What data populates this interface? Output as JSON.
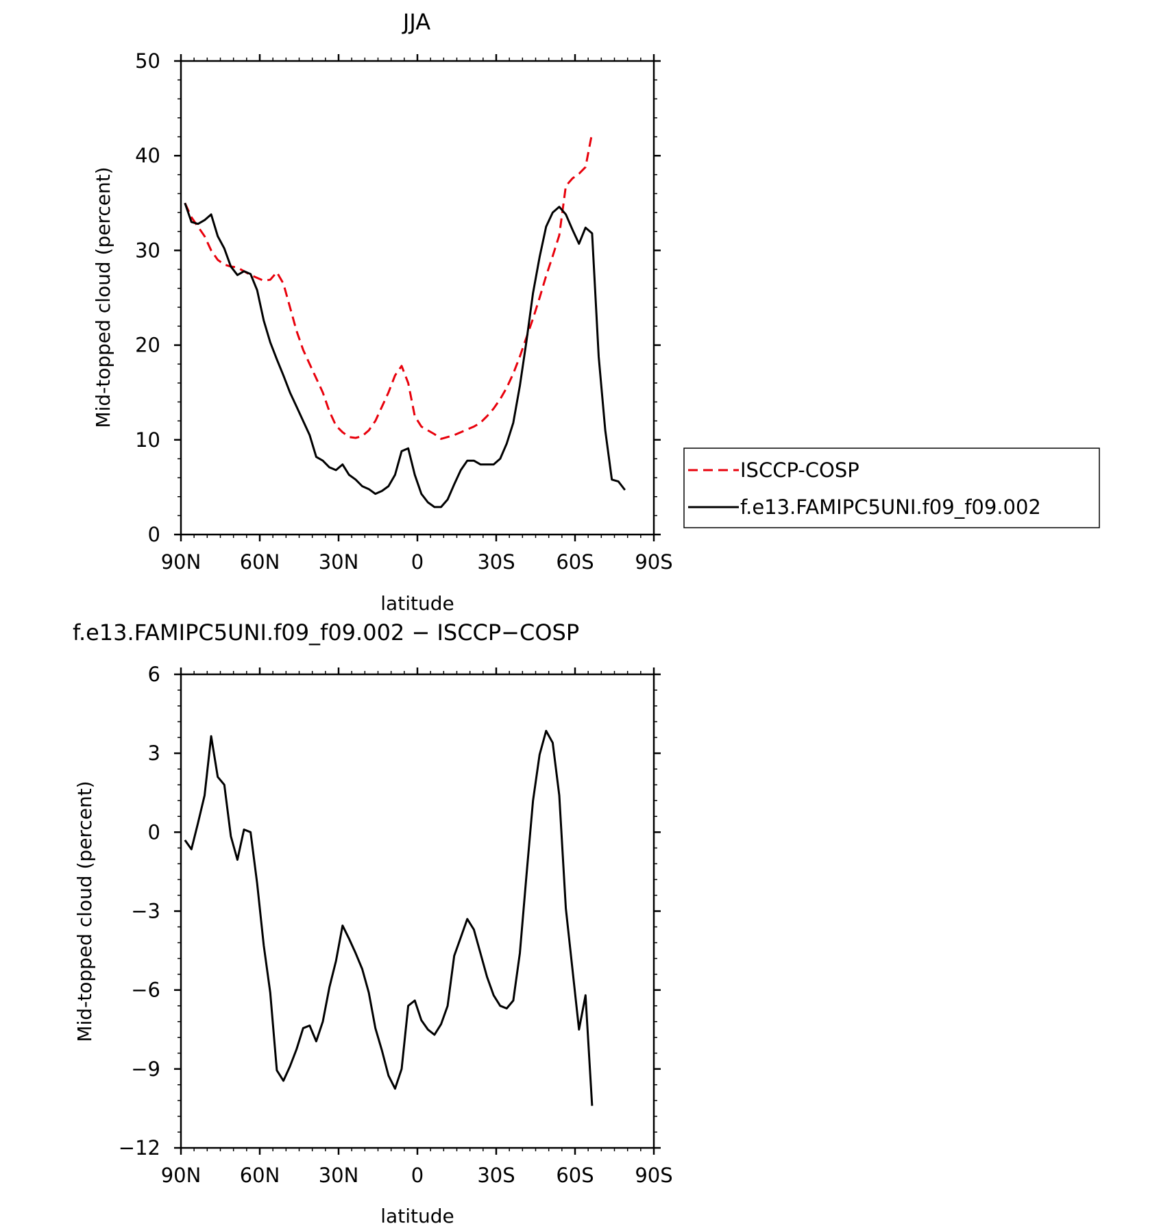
{
  "chart_data": [
    {
      "type": "line",
      "title": "JJA",
      "xlabel": "latitude",
      "ylabel": "Mid-topped cloud (percent)",
      "x_tick_labels": [
        "90N",
        "60N",
        "30N",
        "0",
        "30S",
        "60S",
        "90S"
      ],
      "xlim": [
        -90,
        90
      ],
      "ylim": [
        0,
        50
      ],
      "y_ticks": [
        0,
        10,
        20,
        30,
        40,
        50
      ],
      "legend": [
        "ISCCP-COSP",
        "f.e13.FAMIPC5UNI.f09_f09.002"
      ],
      "legend_position": "right",
      "series": [
        {
          "name": "ISCCP-COSP",
          "color": "#e8000b",
          "style": "dashed",
          "x": [
            -88.5,
            -86,
            -83.5,
            -81,
            -78.5,
            -76,
            -73.5,
            -71,
            -68.5,
            -66,
            -63.5,
            -61,
            -58.5,
            -56,
            -53.5,
            -51,
            -48.5,
            -46,
            -43.5,
            -41,
            -38.5,
            -36,
            -33.5,
            -31,
            -28.5,
            -26,
            -23.5,
            -21,
            -18.5,
            -16,
            -13.5,
            -11,
            -8.5,
            -6,
            -3.5,
            -1,
            1.5,
            4,
            6.5,
            9,
            11.5,
            14,
            16.5,
            19,
            21.5,
            24,
            26.5,
            29,
            31.5,
            34,
            36.5,
            39,
            41.5,
            44,
            46.5,
            49,
            51.5,
            54,
            56.5,
            59,
            61.5,
            64,
            66.5
          ],
          "y": [
            35.0,
            33.5,
            32.5,
            31.5,
            30.0,
            29.0,
            28.5,
            28.3,
            28.2,
            27.8,
            27.4,
            27.1,
            26.8,
            26.9,
            27.7,
            26.5,
            24.0,
            21.5,
            19.5,
            18.0,
            16.5,
            15.0,
            13.0,
            11.5,
            10.8,
            10.3,
            10.2,
            10.4,
            11.0,
            12.0,
            13.5,
            15.0,
            16.8,
            17.8,
            16.0,
            12.5,
            11.4,
            11.0,
            10.6,
            10.1,
            10.3,
            10.5,
            10.8,
            11.1,
            11.4,
            11.8,
            12.5,
            13.3,
            14.3,
            15.5,
            17.0,
            18.8,
            20.8,
            22.8,
            25.0,
            27.3,
            29.4,
            31.6,
            36.8,
            37.6,
            38.1,
            38.8,
            42.4
          ]
        },
        {
          "name": "f.e13.FAMIPC5UNI.f09_f09.002",
          "color": "#000000",
          "style": "solid",
          "x": [
            -88.5,
            -86,
            -83.5,
            -81,
            -78.5,
            -76,
            -73.5,
            -71,
            -68.5,
            -66,
            -63.5,
            -61,
            -58.5,
            -56,
            -53.5,
            -51,
            -48.5,
            -46,
            -43.5,
            -41,
            -38.5,
            -36,
            -33.5,
            -31,
            -28.5,
            -26,
            -23.5,
            -21,
            -18.5,
            -16,
            -13.5,
            -11,
            -8.5,
            -6,
            -3.5,
            -1,
            1.5,
            4,
            6.5,
            9,
            11.5,
            14,
            16.5,
            19,
            21.5,
            24,
            26.5,
            29,
            31.5,
            34,
            36.5,
            39,
            41.5,
            44,
            46.5,
            49,
            51.5,
            54,
            56.5,
            59,
            61.5,
            64,
            66.5,
            69,
            71.5,
            74,
            76.5,
            79
          ],
          "y": [
            35.0,
            33.0,
            32.8,
            33.2,
            33.8,
            31.5,
            30.2,
            28.3,
            27.4,
            27.8,
            27.5,
            25.8,
            22.6,
            20.3,
            18.5,
            16.8,
            15.0,
            13.5,
            12.0,
            10.5,
            8.2,
            7.8,
            7.1,
            6.8,
            7.4,
            6.3,
            5.8,
            5.1,
            4.8,
            4.3,
            4.6,
            5.1,
            6.3,
            8.8,
            9.1,
            6.3,
            4.3,
            3.4,
            2.9,
            2.9,
            3.7,
            5.3,
            6.8,
            7.8,
            7.8,
            7.4,
            7.4,
            7.4,
            8.0,
            9.6,
            11.8,
            15.7,
            20.4,
            25.5,
            29.3,
            32.5,
            34.0,
            34.6,
            33.8,
            32.2,
            30.7,
            32.4,
            31.8,
            18.8,
            11.0,
            5.8,
            5.6,
            4.7
          ]
        }
      ]
    },
    {
      "type": "line",
      "title": "f.e13.FAMIPC5UNI.f09_f09.002 − ISCCP−COSP",
      "xlabel": "latitude",
      "ylabel": "Mid-topped cloud (percent)",
      "x_tick_labels": [
        "90N",
        "60N",
        "30N",
        "0",
        "30S",
        "60S",
        "90S"
      ],
      "xlim": [
        -90,
        90
      ],
      "ylim": [
        -12,
        6
      ],
      "y_ticks": [
        -12,
        -9,
        -6,
        -3,
        0,
        3,
        6
      ],
      "y_tick_labels": [
        "−12",
        "−9",
        "−6",
        "−3",
        "0",
        "3",
        "6"
      ],
      "series": [
        {
          "name": "difference",
          "color": "#000000",
          "style": "solid",
          "x": [
            -88.5,
            -86,
            -83.5,
            -81,
            -78.5,
            -76,
            -73.5,
            -71,
            -68.5,
            -66,
            -63.5,
            -61,
            -58.5,
            -56,
            -53.5,
            -51,
            -48.5,
            -46,
            -43.5,
            -41,
            -38.5,
            -36,
            -33.5,
            -31,
            -28.5,
            -26,
            -23.5,
            -21,
            -18.5,
            -16,
            -13.5,
            -11,
            -8.5,
            -6,
            -3.5,
            -1,
            1.5,
            4,
            6.5,
            9,
            11.5,
            14,
            16.5,
            19,
            21.5,
            24,
            26.5,
            29,
            31.5,
            34,
            36.5,
            39,
            41.5,
            44,
            46.5,
            49,
            51.5,
            54,
            56.5,
            59,
            61.5,
            64,
            66.5
          ],
          "y": [
            -0.3,
            -0.65,
            0.35,
            1.4,
            3.65,
            2.1,
            1.8,
            -0.15,
            -1.05,
            0.1,
            0.0,
            -1.95,
            -4.3,
            -6.1,
            -9.05,
            -9.45,
            -8.9,
            -8.25,
            -7.45,
            -7.35,
            -7.95,
            -7.2,
            -5.9,
            -4.9,
            -3.55,
            -4.05,
            -4.6,
            -5.2,
            -6.1,
            -7.45,
            -8.3,
            -9.25,
            -9.75,
            -9.0,
            -6.6,
            -6.4,
            -7.15,
            -7.5,
            -7.7,
            -7.3,
            -6.6,
            -4.7,
            -4.0,
            -3.3,
            -3.7,
            -4.6,
            -5.5,
            -6.2,
            -6.6,
            -6.7,
            -6.4,
            -4.6,
            -1.65,
            1.2,
            2.95,
            3.85,
            3.4,
            1.4,
            -2.9,
            -5.2,
            -7.5,
            -6.2,
            -10.4
          ]
        }
      ]
    }
  ]
}
